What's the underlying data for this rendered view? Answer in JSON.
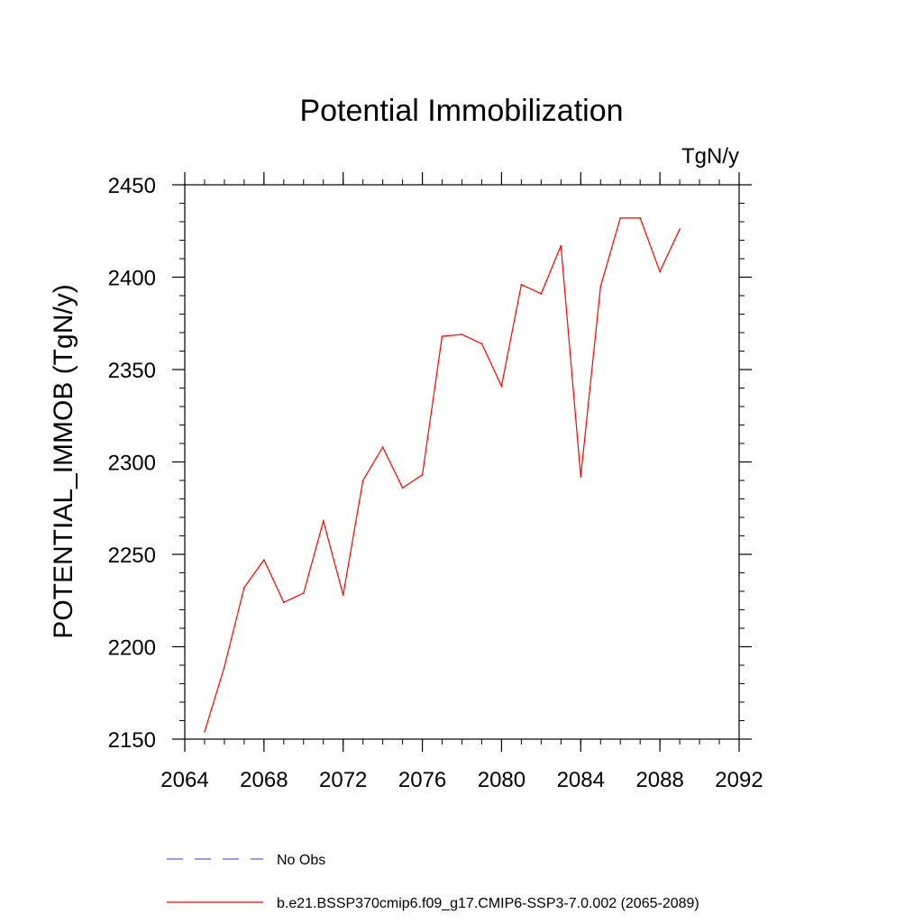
{
  "chart_data": {
    "type": "line",
    "title": "Potential Immobilization",
    "units_label": "TgN/y",
    "xlabel": "",
    "ylabel": "POTENTIAL_IMMOB  (TgN/y)",
    "xlim": [
      2064,
      2092
    ],
    "ylim": [
      2150,
      2450
    ],
    "x_ticks": [
      2064,
      2068,
      2072,
      2076,
      2080,
      2084,
      2088,
      2092
    ],
    "y_ticks": [
      2150,
      2200,
      2250,
      2300,
      2350,
      2400,
      2450
    ],
    "grid": false,
    "legend_position": "bottom",
    "series": [
      {
        "name": "b.e21.BSSP370cmip6.f09_g17.CMIP6-SSP3-7.0.002 (2065-2089)",
        "color": "#ff0000",
        "style": "solid",
        "x": [
          2065,
          2066,
          2067,
          2068,
          2069,
          2070,
          2071,
          2072,
          2073,
          2074,
          2075,
          2076,
          2077,
          2078,
          2079,
          2080,
          2081,
          2082,
          2083,
          2084,
          2085,
          2086,
          2087,
          2088,
          2089
        ],
        "y": [
          2154,
          2189,
          2232,
          2247,
          2224,
          2229,
          2268,
          2228,
          2290,
          2308,
          2286,
          2293,
          2368,
          2369,
          2364,
          2341,
          2396,
          2391,
          2417,
          2292,
          2395,
          2432,
          2432,
          2403,
          2426
        ]
      }
    ],
    "legend": [
      {
        "label": "No Obs",
        "color": "#6060c0",
        "style": "dashed"
      },
      {
        "label": "b.e21.BSSP370cmip6.f09_g17.CMIP6-SSP3-7.0.002 (2065-2089)",
        "color": "#ff0000",
        "style": "solid"
      }
    ]
  }
}
